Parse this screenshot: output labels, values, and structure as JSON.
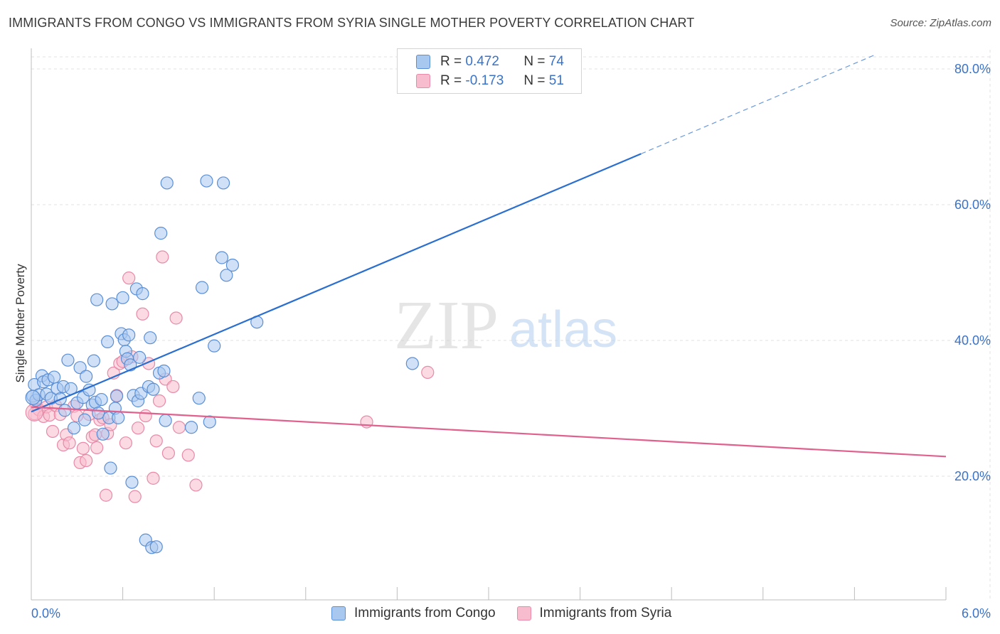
{
  "title": "IMMIGRANTS FROM CONGO VS IMMIGRANTS FROM SYRIA SINGLE MOTHER POVERTY CORRELATION CHART",
  "source": "Source: ZipAtlas.com",
  "watermark": {
    "zip": "ZIP",
    "atlas": "atlas"
  },
  "legend": {
    "r_label": "R =",
    "n_label": "N =",
    "series": [
      {
        "name": "Immigrants from Congo",
        "r": "0.472",
        "n": "74",
        "fill": "#a9c8f0",
        "stroke": "#5a8fd6",
        "line": "#2a6fcf"
      },
      {
        "name": "Immigrants from Syria",
        "r": "-0.173",
        "n": "51",
        "fill": "#f7bccd",
        "stroke": "#e88aa8",
        "line": "#e0608e"
      }
    ]
  },
  "chart_data": {
    "type": "scatter",
    "title": "IMMIGRANTS FROM CONGO VS IMMIGRANTS FROM SYRIA SINGLE MOTHER POVERTY CORRELATION CHART",
    "xlabel": "",
    "ylabel": "Single Mother Poverty",
    "xlim": [
      0,
      6
    ],
    "ylim": [
      0,
      82
    ],
    "x_tick_labels": [
      "0.0%",
      "6.0%"
    ],
    "y_ticks": [
      20,
      40,
      60,
      80
    ],
    "y_tick_labels": [
      "20.0%",
      "40.0%",
      "60.0%",
      "80.0%"
    ],
    "grid": true,
    "series": [
      {
        "name": "Immigrants from Congo",
        "r": 0.472,
        "n": 74,
        "trend": {
          "x0": 0,
          "y0": 29.5,
          "x1": 4.0,
          "y1": 67.5,
          "dash_to_x": 6.0,
          "dash_to_y": 86.5
        },
        "points": [
          [
            0.01,
            31.8
          ],
          [
            0.02,
            33.5
          ],
          [
            0.03,
            31.2
          ],
          [
            0.05,
            32.0
          ],
          [
            0.07,
            34.8
          ],
          [
            0.08,
            33.9
          ],
          [
            0.1,
            32.1
          ],
          [
            0.11,
            34.2
          ],
          [
            0.13,
            31.5
          ],
          [
            0.15,
            34.6
          ],
          [
            0.17,
            32.9
          ],
          [
            0.19,
            31.4
          ],
          [
            0.21,
            33.2
          ],
          [
            0.22,
            29.7
          ],
          [
            0.24,
            37.1
          ],
          [
            0.26,
            32.9
          ],
          [
            0.28,
            27.1
          ],
          [
            0.3,
            30.8
          ],
          [
            0.32,
            36.0
          ],
          [
            0.34,
            31.6
          ],
          [
            0.35,
            28.3
          ],
          [
            0.36,
            34.7
          ],
          [
            0.38,
            32.7
          ],
          [
            0.4,
            30.5
          ],
          [
            0.41,
            37.0
          ],
          [
            0.42,
            30.9
          ],
          [
            0.44,
            29.3
          ],
          [
            0.46,
            31.3
          ],
          [
            0.47,
            26.2
          ],
          [
            0.5,
            39.8
          ],
          [
            0.51,
            28.6
          ],
          [
            0.52,
            21.2
          ],
          [
            0.53,
            45.4
          ],
          [
            0.55,
            30.0
          ],
          [
            0.56,
            31.8
          ],
          [
            0.57,
            28.6
          ],
          [
            0.59,
            41.0
          ],
          [
            0.61,
            40.1
          ],
          [
            0.62,
            38.4
          ],
          [
            0.63,
            37.3
          ],
          [
            0.64,
            40.8
          ],
          [
            0.65,
            36.4
          ],
          [
            0.66,
            19.1
          ],
          [
            0.67,
            31.9
          ],
          [
            0.69,
            47.6
          ],
          [
            0.7,
            31.1
          ],
          [
            0.71,
            37.5
          ],
          [
            0.72,
            32.2
          ],
          [
            0.73,
            46.9
          ],
          [
            0.75,
            10.6
          ],
          [
            0.77,
            33.2
          ],
          [
            0.78,
            40.4
          ],
          [
            0.79,
            9.5
          ],
          [
            0.8,
            32.8
          ],
          [
            0.82,
            9.6
          ],
          [
            0.84,
            35.2
          ],
          [
            0.85,
            55.8
          ],
          [
            0.87,
            35.5
          ],
          [
            0.88,
            28.2
          ],
          [
            0.89,
            63.2
          ],
          [
            1.05,
            27.2
          ],
          [
            1.1,
            31.5
          ],
          [
            1.12,
            47.8
          ],
          [
            1.15,
            63.5
          ],
          [
            1.17,
            28.0
          ],
          [
            1.2,
            39.2
          ],
          [
            1.26,
            63.2
          ],
          [
            1.25,
            52.2
          ],
          [
            1.28,
            49.6
          ],
          [
            1.32,
            51.1
          ],
          [
            1.48,
            42.7
          ],
          [
            2.5,
            36.6
          ],
          [
            0.43,
            46.0
          ],
          [
            0.6,
            46.3
          ]
        ]
      },
      {
        "name": "Immigrants from Syria",
        "r": -0.173,
        "n": 51,
        "trend": {
          "x0": 0,
          "y0": 30.2,
          "x1": 6.0,
          "y1": 22.9
        },
        "points": [
          [
            0.02,
            29.2
          ],
          [
            0.03,
            30.6
          ],
          [
            0.05,
            29.8
          ],
          [
            0.08,
            28.8
          ],
          [
            0.1,
            30.2
          ],
          [
            0.12,
            29.0
          ],
          [
            0.14,
            26.6
          ],
          [
            0.16,
            30.4
          ],
          [
            0.19,
            29.1
          ],
          [
            0.21,
            24.6
          ],
          [
            0.23,
            26.1
          ],
          [
            0.25,
            24.9
          ],
          [
            0.28,
            30.3
          ],
          [
            0.3,
            28.9
          ],
          [
            0.32,
            22.0
          ],
          [
            0.34,
            24.1
          ],
          [
            0.36,
            22.3
          ],
          [
            0.38,
            29.1
          ],
          [
            0.4,
            25.8
          ],
          [
            0.42,
            26.1
          ],
          [
            0.43,
            24.2
          ],
          [
            0.45,
            28.3
          ],
          [
            0.47,
            28.6
          ],
          [
            0.49,
            17.2
          ],
          [
            0.5,
            26.3
          ],
          [
            0.52,
            27.6
          ],
          [
            0.54,
            35.2
          ],
          [
            0.56,
            31.9
          ],
          [
            0.58,
            36.6
          ],
          [
            0.6,
            36.9
          ],
          [
            0.62,
            24.9
          ],
          [
            0.64,
            49.2
          ],
          [
            0.66,
            37.6
          ],
          [
            0.68,
            17.0
          ],
          [
            0.7,
            27.1
          ],
          [
            0.73,
            43.9
          ],
          [
            0.75,
            28.9
          ],
          [
            0.77,
            36.6
          ],
          [
            0.8,
            19.7
          ],
          [
            0.82,
            25.2
          ],
          [
            0.84,
            31.1
          ],
          [
            0.86,
            52.3
          ],
          [
            0.88,
            34.3
          ],
          [
            0.9,
            23.4
          ],
          [
            0.93,
            33.2
          ],
          [
            0.95,
            43.3
          ],
          [
            0.97,
            27.2
          ],
          [
            1.03,
            23.1
          ],
          [
            1.08,
            18.7
          ],
          [
            2.2,
            28.0
          ],
          [
            2.6,
            35.3
          ]
        ]
      }
    ]
  }
}
